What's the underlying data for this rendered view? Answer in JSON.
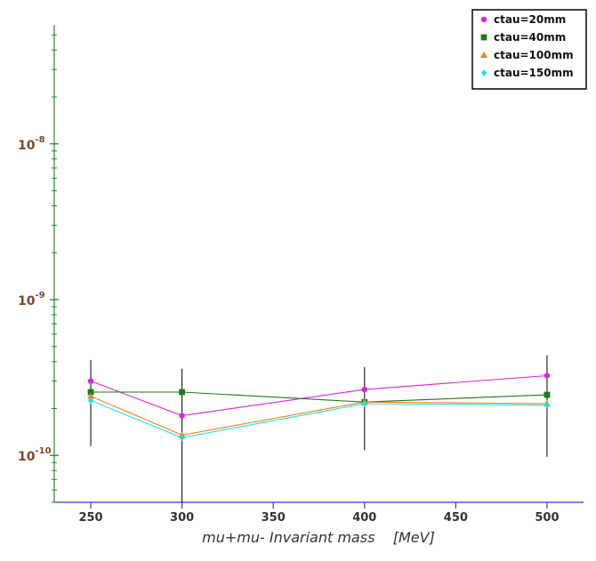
{
  "chart_data": {
    "type": "line",
    "xlabel": "mu+mu- Invariant mass    [MeV]",
    "ylabel": "",
    "y_scale": "log",
    "xlim": [
      230,
      520
    ],
    "ylim": [
      5e-11,
      5.8e-08
    ],
    "x_ticks": [
      250,
      300,
      350,
      400,
      450,
      500
    ],
    "y_tick_labels": [
      {
        "value": 1e-10,
        "base": "10",
        "exp": "-10"
      },
      {
        "value": 1e-09,
        "base": "10",
        "exp": "-9"
      },
      {
        "value": 1e-08,
        "base": "10",
        "exp": "-8"
      }
    ],
    "legend_position": "top-right",
    "x": [
      250,
      300,
      400,
      500
    ],
    "series": [
      {
        "name": "ctau=20mm",
        "color": "#e020e0",
        "marker": "circle",
        "values": [
          3e-10,
          1.8e-10,
          2.65e-10,
          3.25e-10
        ]
      },
      {
        "name": "ctau=40mm",
        "color": "#1a7a1a",
        "marker": "square",
        "values": [
          2.55e-10,
          2.55e-10,
          2.2e-10,
          2.45e-10
        ]
      },
      {
        "name": "ctau=100mm",
        "color": "#f08020",
        "marker": "triangle",
        "values": [
          2.4e-10,
          1.35e-10,
          2.2e-10,
          2.15e-10
        ]
      },
      {
        "name": "ctau=150mm",
        "color": "#20e0e0",
        "marker": "diamond",
        "values": [
          2.25e-10,
          1.3e-10,
          2.15e-10,
          2.1e-10
        ]
      }
    ],
    "error_bars": [
      {
        "x": 250,
        "low": 1.15e-10,
        "high": 4.1e-10
      },
      {
        "x": 300,
        "low": 5e-11,
        "high": 3.6e-10
      },
      {
        "x": 400,
        "low": 1.08e-10,
        "high": 3.7e-10
      },
      {
        "x": 500,
        "low": 9.8e-11,
        "high": 4.4e-10
      }
    ]
  }
}
